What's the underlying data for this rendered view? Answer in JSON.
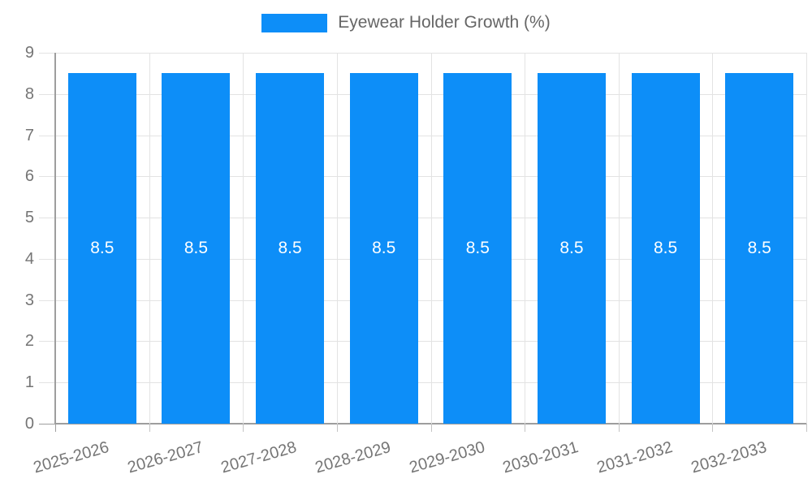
{
  "chart_data": {
    "type": "bar",
    "title": "Eyewear Holder Growth (%)",
    "categories": [
      "2025-2026",
      "2026-2027",
      "2027-2028",
      "2028-2029",
      "2029-2030",
      "2030-2031",
      "2031-2032",
      "2032-2033"
    ],
    "values": [
      8.5,
      8.5,
      8.5,
      8.5,
      8.5,
      8.5,
      8.5,
      8.5
    ],
    "value_labels": [
      "8.5",
      "8.5",
      "8.5",
      "8.5",
      "8.5",
      "8.5",
      "8.5",
      "8.5"
    ],
    "xlabel": "",
    "ylabel": "",
    "ylim": [
      0,
      9
    ],
    "yticks": [
      0,
      1,
      2,
      3,
      4,
      5,
      6,
      7,
      8,
      9
    ],
    "grid": true,
    "legend_position": "top",
    "colors": {
      "bar": "#0D8EF8",
      "value_label": "#FFFFFF",
      "axis_text": "#757575",
      "grid_line": "#E3E3E3",
      "axis_line": "#9E9E9E"
    }
  }
}
